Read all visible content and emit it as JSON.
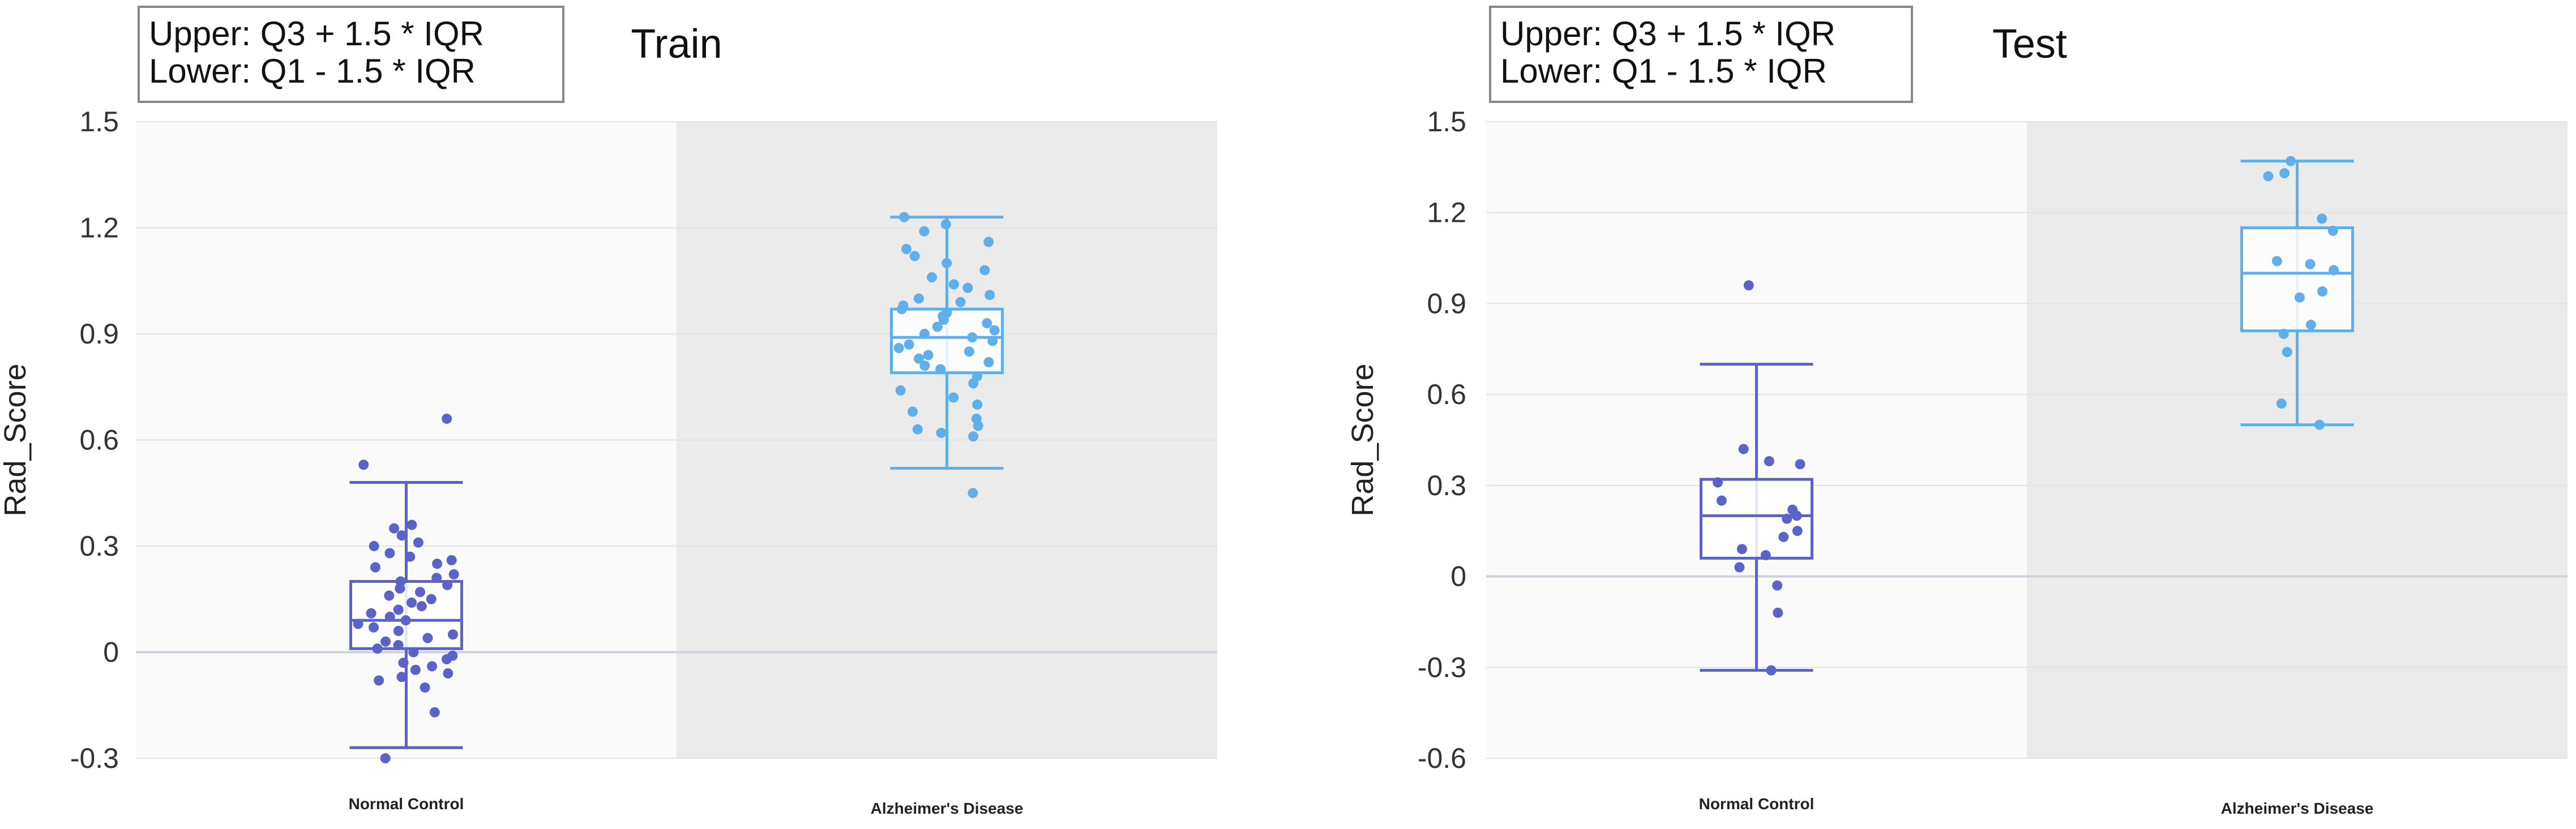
{
  "colors": {
    "normal_control": "#5b62c8",
    "alzheimers": "#5fb0ea",
    "left_band": "#fafafa",
    "right_band": "#ebebeb",
    "grid": "#e3e3e3",
    "axis_text": "#333333",
    "legend_border": "#888888"
  },
  "chart_data": [
    {
      "type": "box",
      "title": "Train",
      "legend_box": [
        "Upper: Q3 + 1.5 * IQR",
        "Lower: Q1 - 1.5 * IQR"
      ],
      "ylabel": "Rad_Score",
      "ylim": [
        -0.3,
        1.5
      ],
      "yticks": [
        -0.3,
        0,
        0.3,
        0.6,
        0.9,
        1.2,
        1.5
      ],
      "yticklabels": [
        "-0.3",
        "0",
        "0.3",
        "0.6",
        "0.9",
        "1.2",
        "1.5"
      ],
      "categories": [
        "Normal Control",
        "Alzheimer's Disease"
      ],
      "boxes": [
        {
          "category": "Normal Control",
          "min": -0.27,
          "q1": 0.01,
          "median": 0.09,
          "q3": 0.2,
          "max": 0.48,
          "points": [
            0.66,
            0.53,
            0.36,
            0.35,
            0.33,
            0.31,
            0.3,
            0.28,
            0.27,
            0.26,
            0.25,
            0.24,
            0.22,
            0.21,
            0.2,
            0.19,
            0.18,
            0.17,
            0.16,
            0.15,
            0.14,
            0.13,
            0.12,
            0.11,
            0.1,
            0.09,
            0.08,
            0.07,
            0.06,
            0.05,
            0.04,
            0.03,
            0.02,
            0.01,
            0.0,
            -0.01,
            -0.02,
            -0.03,
            -0.04,
            -0.05,
            -0.06,
            -0.07,
            -0.08,
            -0.1,
            -0.17,
            -0.3
          ]
        },
        {
          "category": "Alzheimer's Disease",
          "min": 0.52,
          "q1": 0.79,
          "median": 0.89,
          "q3": 0.97,
          "max": 1.23,
          "points": [
            1.23,
            1.21,
            1.19,
            1.16,
            1.14,
            1.12,
            1.1,
            1.08,
            1.06,
            1.04,
            1.03,
            1.01,
            1.0,
            0.99,
            0.98,
            0.97,
            0.96,
            0.95,
            0.94,
            0.93,
            0.92,
            0.91,
            0.9,
            0.89,
            0.88,
            0.87,
            0.86,
            0.85,
            0.84,
            0.83,
            0.82,
            0.81,
            0.8,
            0.78,
            0.76,
            0.74,
            0.72,
            0.7,
            0.68,
            0.66,
            0.64,
            0.63,
            0.62,
            0.61,
            0.45
          ]
        }
      ]
    },
    {
      "type": "box",
      "title": "Test",
      "legend_box": [
        "Upper: Q3 + 1.5 * IQR",
        "Lower: Q1 - 1.5 * IQR"
      ],
      "ylabel": "Rad_Score",
      "ylim": [
        -0.6,
        1.5
      ],
      "yticks": [
        -0.6,
        -0.3,
        0,
        0.3,
        0.6,
        0.9,
        1.2,
        1.5
      ],
      "yticklabels": [
        "-0.6",
        "-0.3",
        "0",
        "0.3",
        "0.6",
        "0.9",
        "1.2",
        "1.5"
      ],
      "categories": [
        "Normal Control",
        "Alzheimer's Disease"
      ],
      "boxes": [
        {
          "category": "Normal Control",
          "min": -0.31,
          "q1": 0.06,
          "median": 0.2,
          "q3": 0.32,
          "max": 0.7,
          "points": [
            0.96,
            0.42,
            0.38,
            0.37,
            0.31,
            0.25,
            0.22,
            0.2,
            0.19,
            0.15,
            0.13,
            0.09,
            0.07,
            0.03,
            -0.03,
            -0.12,
            -0.31
          ]
        },
        {
          "category": "Alzheimer's Disease",
          "min": 0.5,
          "q1": 0.81,
          "median": 1.0,
          "q3": 1.15,
          "max": 1.37,
          "points": [
            1.37,
            1.33,
            1.32,
            1.18,
            1.14,
            1.04,
            1.03,
            1.01,
            0.94,
            0.92,
            0.83,
            0.8,
            0.74,
            0.57,
            0.5
          ]
        }
      ]
    }
  ]
}
